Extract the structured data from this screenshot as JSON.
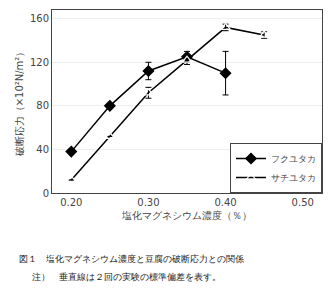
{
  "chart_data": {
    "type": "line",
    "x_label": "塩化マグネシウム濃度（％）",
    "y_label": "破断応力（×10²N/m²）",
    "annotations": [
      "図１　塩化マグネシウム濃度と豆腐の破断応力との関係",
      "注）　垂直線は２回の実験の標準偏差を表す。"
    ],
    "series": [
      {
        "name": "フクユタカ",
        "color": "#000000",
        "marker": "diamond",
        "line_style": "solid",
        "x": [
          0.2,
          0.25,
          0.3,
          0.35,
          0.4
        ],
        "values": [
          38,
          80,
          112,
          125,
          110
        ],
        "yerr": [
          0,
          0,
          8,
          5,
          20
        ]
      },
      {
        "name": "サチユタカ",
        "color": "#000000",
        "marker": "triangle-up-open",
        "line_style": "solid",
        "x": [
          0.2,
          0.25,
          0.3,
          0.35,
          0.4,
          0.45
        ],
        "values": [
          12,
          52,
          92,
          122,
          152,
          145
        ],
        "yerr": [
          0,
          0,
          5,
          4,
          3,
          3
        ]
      }
    ],
    "xlim": [
      0.175,
      0.525
    ],
    "xticks": [
      {
        "value": 0.2,
        "label": "0.20"
      },
      {
        "value": 0.3,
        "label": "0.30"
      },
      {
        "value": 0.4,
        "label": "0.40"
      },
      {
        "value": 0.5,
        "label": "0.50"
      }
    ],
    "ylim": [
      0,
      168
    ],
    "yticks": [
      0,
      40,
      80,
      120,
      160
    ],
    "grid": "y",
    "legend": "lower right"
  }
}
